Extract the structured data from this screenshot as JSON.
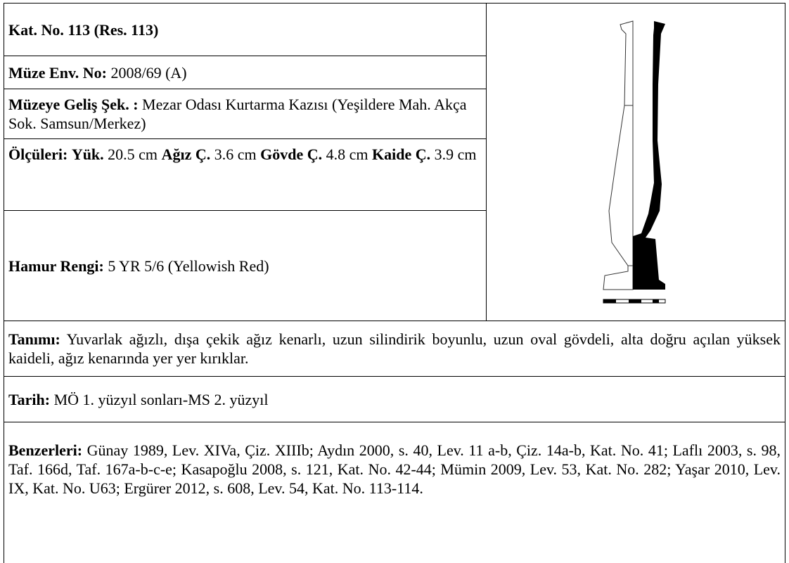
{
  "catalog": {
    "title": "Kat. No. 113 (Res. 113)",
    "inventory": {
      "label": "Müze Env. No:",
      "value": "2008/69 (A)"
    },
    "acquisition": {
      "label": "Müzeye Geliş Şek. :",
      "value": "Mezar Odası Kurtarma Kazısı (Yeşildere Mah. Akça Sok. Samsun/Merkez)"
    },
    "measurements": {
      "label": "Ölçüleri:",
      "items": [
        {
          "label": "Yük.",
          "value": "20.5 cm"
        },
        {
          "label": "Ağız Ç.",
          "value": "3.6 cm"
        },
        {
          "label": "Gövde Ç.",
          "value": "4.8 cm"
        },
        {
          "label": "Kaide Ç.",
          "value": "3.9 cm"
        }
      ]
    },
    "clay_color": {
      "label": "Hamur Rengi:",
      "value": "5 YR 5/6 (Yellowish Red)"
    },
    "description": {
      "label": "Tanımı:",
      "value": "Yuvarlak ağızlı, dışa çekik ağız kenarlı, uzun silindirik boyunlu, uzun oval gövdeli, alta doğru açılan yüksek kaideli, ağız kenarında yer yer kırıklar."
    },
    "date": {
      "label": "Tarih:",
      "value": "MÖ 1. yüzyıl sonları-MS 2. yüzyıl"
    },
    "parallels": {
      "label": "Benzerleri:",
      "value": "Günay 1989, Lev. XIVa, Çiz. XIIIb; Aydın 2000, s. 40, Lev. 11 a-b, Çiz. 14a-b, Kat. No. 41; Laflı 2003, s. 98, Taf. 166d, Taf. 167a-b-c-e; Kasapoğlu 2008, s. 121, Kat. No. 42-44; Mümin 2009, Lev. 53, Kat. No. 282; Yaşar 2010, Lev. IX, Kat. No. U63; Ergürer 2012, s. 608, Lev. 54, Kat. No. 113-114."
    }
  }
}
